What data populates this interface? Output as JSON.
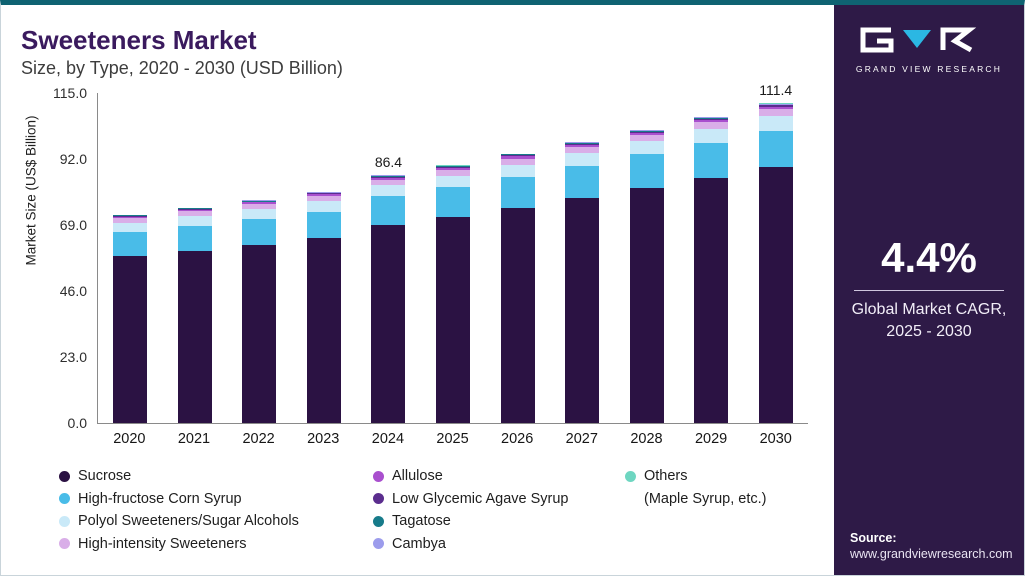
{
  "page": {
    "title": "Sweeteners Market",
    "subtitle": "Size, by Type, 2020 - 2030 (USD Billion)"
  },
  "sidebar": {
    "bg_color": "#2E1A47",
    "accent_color": "#0F6372",
    "logo_text": "GRAND VIEW RESEARCH",
    "cagr_value": "4.4%",
    "cagr_line1": "Global Market CAGR,",
    "cagr_line2": "2025 - 2030",
    "source_label": "Source:",
    "source_url": "www.grandviewresearch.com"
  },
  "chart_data": {
    "type": "bar",
    "stacked": true,
    "title": "Sweeteners Market Size, by Type, 2020 - 2030 (USD Billion)",
    "xlabel": "",
    "ylabel": "Market Size (US$ Billion)",
    "ylim": [
      0,
      115
    ],
    "yticks": [
      0.0,
      23.0,
      46.0,
      69.0,
      92.0,
      115.0
    ],
    "grid": false,
    "legend_position": "bottom",
    "categories": [
      "2020",
      "2021",
      "2022",
      "2023",
      "2024",
      "2025",
      "2026",
      "2027",
      "2028",
      "2029",
      "2030"
    ],
    "annotations": [
      {
        "category": "2024",
        "text": "86.4"
      },
      {
        "category": "2030",
        "text": "111.4"
      }
    ],
    "totals": [
      72.6,
      75.1,
      77.7,
      80.5,
      86.4,
      89.8,
      93.8,
      97.9,
      102.2,
      106.7,
      111.4
    ],
    "series": [
      {
        "name": "Sucrose",
        "color": "#2B1243",
        "values": [
          58.1,
          60.1,
          62.2,
          64.4,
          69.1,
          71.8,
          75.0,
          78.3,
          81.8,
          85.4,
          89.1
        ]
      },
      {
        "name": "High-fructose Corn Syrup",
        "color": "#49BCE8",
        "values": [
          8.3,
          8.6,
          8.9,
          9.3,
          9.9,
          10.3,
          10.8,
          11.3,
          11.8,
          12.3,
          12.8
        ]
      },
      {
        "name": "Polyol Sweeteners/Sugar Alcohols",
        "color": "#C9E9F8",
        "values": [
          3.3,
          3.4,
          3.5,
          3.6,
          3.9,
          4.0,
          4.2,
          4.4,
          4.6,
          4.8,
          5.0
        ]
      },
      {
        "name": "High-intensity Sweeteners",
        "color": "#D9AEE8",
        "values": [
          1.6,
          1.7,
          1.7,
          1.8,
          1.9,
          2.0,
          2.1,
          2.2,
          2.2,
          2.3,
          2.5
        ]
      },
      {
        "name": "Allulose",
        "color": "#A94FCE",
        "values": [
          0.6,
          0.6,
          0.6,
          0.6,
          0.7,
          0.7,
          0.8,
          0.8,
          0.8,
          0.9,
          0.9
        ]
      },
      {
        "name": "Low Glycemic Agave Syrup",
        "color": "#5B2D8E",
        "values": [
          0.3,
          0.3,
          0.3,
          0.3,
          0.3,
          0.4,
          0.4,
          0.4,
          0.4,
          0.4,
          0.4
        ]
      },
      {
        "name": "Tagatose",
        "color": "#177B8A",
        "values": [
          0.2,
          0.2,
          0.2,
          0.2,
          0.3,
          0.3,
          0.3,
          0.3,
          0.3,
          0.3,
          0.3
        ]
      },
      {
        "name": "Cambya",
        "color": "#9C9CEC",
        "values": [
          0.1,
          0.1,
          0.2,
          0.2,
          0.2,
          0.2,
          0.2,
          0.2,
          0.2,
          0.2,
          0.2
        ]
      },
      {
        "name": "Others (Maple Syrup, etc.)",
        "color": "#6ED6C1",
        "values": [
          0.1,
          0.1,
          0.1,
          0.2,
          0.1,
          0.1,
          0.1,
          0.1,
          0.1,
          0.1,
          0.2
        ]
      }
    ]
  },
  "legend": {
    "columns": [
      {
        "items": [
          {
            "label": "Sucrose",
            "color": "#2B1243"
          },
          {
            "label": "High-fructose Corn Syrup",
            "color": "#49BCE8"
          },
          {
            "label": "Polyol Sweeteners/Sugar Alcohols",
            "color": "#C9E9F8"
          },
          {
            "label": "High-intensity Sweeteners",
            "color": "#D9AEE8"
          }
        ]
      },
      {
        "items": [
          {
            "label": "Allulose",
            "color": "#A94FCE"
          },
          {
            "label": "Low Glycemic Agave Syrup",
            "color": "#5B2D8E"
          },
          {
            "label": "Tagatose",
            "color": "#177B8A"
          },
          {
            "label": "Cambya",
            "color": "#9C9CEC"
          }
        ]
      },
      {
        "items": [
          {
            "label": "Others",
            "sublabel": "(Maple Syrup, etc.)",
            "color": "#6ED6C1"
          }
        ]
      }
    ]
  }
}
